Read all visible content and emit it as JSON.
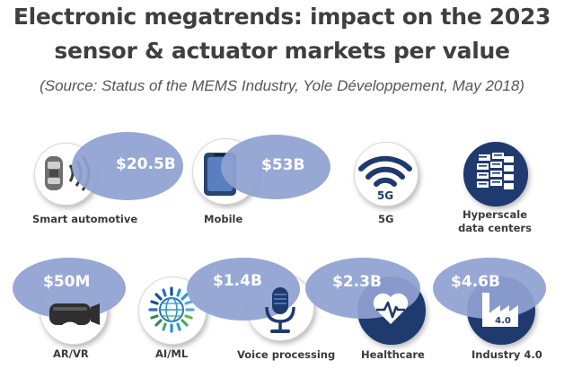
{
  "title_line1": "Electronic megatrends: impact on the 2023",
  "title_line2": "sensor & actuator markets per value",
  "source": "(Source: Status of the MEMS Industry, Yole Développement, May 2018)",
  "colors": {
    "ellipse": "#8fa1d2",
    "icon_navy": "#1f3a6e",
    "title": "#3f3f3f"
  },
  "items": [
    {
      "id": "smart-automotive",
      "label": "Smart automotive",
      "value": "$20.5B",
      "icon": "car-radar-icon"
    },
    {
      "id": "mobile",
      "label": "Mobile",
      "value": "$53B",
      "icon": "smartphone-icon"
    },
    {
      "id": "5g",
      "label": "5G",
      "value": "",
      "icon": "wifi-5g-icon"
    },
    {
      "id": "hyperscale",
      "label": "Hyperscale\ndata centers",
      "value": "",
      "icon": "server-stack-icon"
    },
    {
      "id": "ar-vr",
      "label": "AR/VR",
      "value": "$50M",
      "icon": "vr-headset-icon"
    },
    {
      "id": "ai-ml",
      "label": "AI/ML",
      "value": "",
      "icon": "ai-globe-icon"
    },
    {
      "id": "voice",
      "label": "Voice processing",
      "value": "$1.4B",
      "icon": "microphone-icon"
    },
    {
      "id": "healthcare",
      "label": "Healthcare",
      "value": "$2.3B",
      "icon": "heart-pulse-icon"
    },
    {
      "id": "industry",
      "label": "Industry 4.0",
      "value": "$4.6B",
      "icon": "factory-icon",
      "icon_text": "4.0"
    }
  ]
}
